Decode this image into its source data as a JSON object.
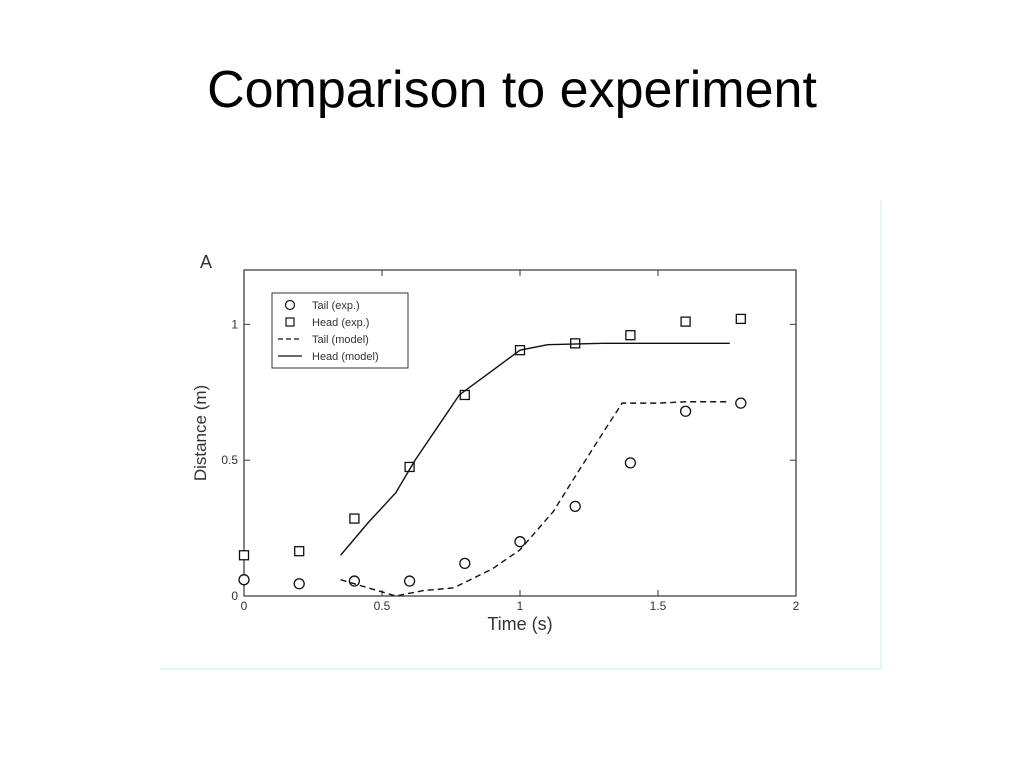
{
  "slide": {
    "title": "Comparison to experiment"
  },
  "colors": {
    "text": "#000000",
    "axis": "#333333",
    "frame_border": "#e6f4fb"
  },
  "chart_data": {
    "type": "scatter",
    "panel_label": "A",
    "xlabel": "Time (s)",
    "ylabel": "Distance (m)",
    "xlim": [
      0,
      2
    ],
    "ylim": [
      0,
      1.2
    ],
    "x_ticks": [
      0,
      0.5,
      1,
      1.5,
      2
    ],
    "x_tick_labels": [
      "0",
      "0.5",
      "1",
      "1.5",
      "2"
    ],
    "y_ticks": [
      0,
      0.5,
      1
    ],
    "y_tick_labels": [
      "0",
      "0.5",
      "1"
    ],
    "grid": false,
    "legend_position": "top-left",
    "legend": [
      {
        "label": "Tail (exp.)",
        "symbol": "circle"
      },
      {
        "label": "Head (exp.)",
        "symbol": "square"
      },
      {
        "label": "Tail (model)",
        "symbol": "dashed-line"
      },
      {
        "label": "Head (model)",
        "symbol": "solid-line"
      }
    ],
    "series": [
      {
        "name": "Tail (exp.)",
        "kind": "points",
        "marker": "circle",
        "x": [
          0,
          0.2,
          0.4,
          0.6,
          0.8,
          1.0,
          1.2,
          1.4,
          1.6,
          1.8
        ],
        "y": [
          0.06,
          0.045,
          0.055,
          0.055,
          0.12,
          0.2,
          0.33,
          0.49,
          0.68,
          0.71
        ]
      },
      {
        "name": "Head (exp.)",
        "kind": "points",
        "marker": "square",
        "x": [
          0,
          0.2,
          0.4,
          0.6,
          0.8,
          1.0,
          1.2,
          1.4,
          1.6,
          1.8
        ],
        "y": [
          0.15,
          0.165,
          0.285,
          0.475,
          0.74,
          0.905,
          0.93,
          0.96,
          1.01,
          1.02
        ]
      },
      {
        "name": "Tail (model)",
        "kind": "line",
        "dash": true,
        "x": [
          0.35,
          0.45,
          0.55,
          0.65,
          0.76,
          0.9,
          1.0,
          1.12,
          1.2,
          1.3,
          1.37,
          1.5,
          1.6,
          1.76
        ],
        "y": [
          0.06,
          0.03,
          0.0,
          0.02,
          0.03,
          0.1,
          0.17,
          0.31,
          0.44,
          0.6,
          0.71,
          0.71,
          0.715,
          0.715
        ]
      },
      {
        "name": "Head (model)",
        "kind": "line",
        "dash": false,
        "x": [
          0.35,
          0.45,
          0.55,
          0.62,
          0.7,
          0.78,
          0.9,
          1.0,
          1.1,
          1.3,
          1.5,
          1.76
        ],
        "y": [
          0.15,
          0.27,
          0.38,
          0.5,
          0.62,
          0.74,
          0.83,
          0.905,
          0.925,
          0.93,
          0.93,
          0.93
        ]
      }
    ]
  }
}
